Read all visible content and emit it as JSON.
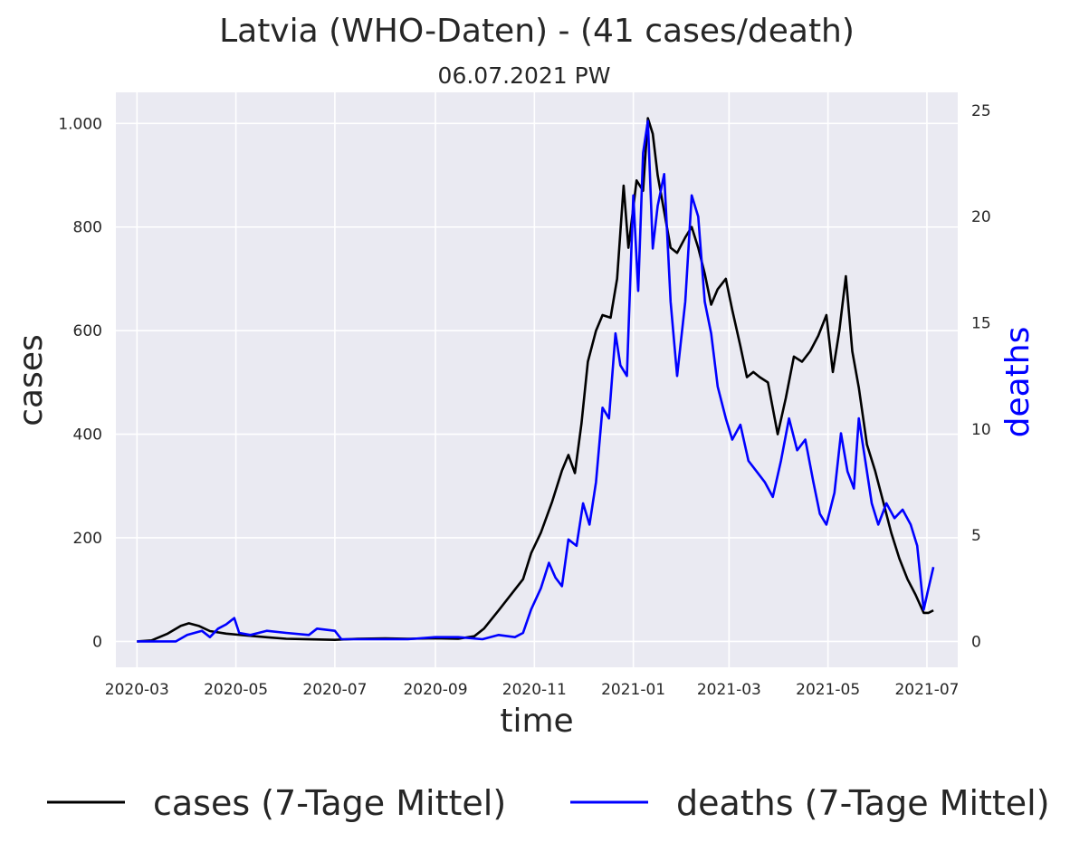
{
  "chart_data": {
    "type": "line",
    "title": "Latvia (WHO-Daten) - (41 cases/death)",
    "subtitle": "06.07.2021 PW",
    "xlabel": "time",
    "ylabel_left": "cases",
    "ylabel_right": "deaths",
    "x_ticks": [
      "2020-03",
      "2020-05",
      "2020-07",
      "2020-09",
      "2020-11",
      "2021-01",
      "2021-03",
      "2021-05",
      "2021-07"
    ],
    "y_left_ticks": [
      {
        "value": 0,
        "label": "0"
      },
      {
        "value": 200,
        "label": "200"
      },
      {
        "value": 400,
        "label": "400"
      },
      {
        "value": 600,
        "label": "600"
      },
      {
        "value": 800,
        "label": "800"
      },
      {
        "value": 1000,
        "label": "1.000"
      }
    ],
    "y_right_ticks": [
      {
        "value": 0,
        "label": "0"
      },
      {
        "value": 5,
        "label": "5"
      },
      {
        "value": 10,
        "label": "10"
      },
      {
        "value": 15,
        "label": "15"
      },
      {
        "value": 20,
        "label": "20"
      },
      {
        "value": 25,
        "label": "25"
      }
    ],
    "xlim": [
      "2020-02-17",
      "2021-07-20"
    ],
    "ylim_left": [
      -50,
      1060
    ],
    "ylim_right": [
      -1.22,
      25.85
    ],
    "grid": true,
    "legend_position": "bottom",
    "series": [
      {
        "name": "cases (7-Tage Mittel)",
        "color": "#000000",
        "axis": "left",
        "points": [
          [
            "2020-03-01",
            0
          ],
          [
            "2020-03-10",
            2
          ],
          [
            "2020-03-20",
            15
          ],
          [
            "2020-03-28",
            30
          ],
          [
            "2020-04-02",
            35
          ],
          [
            "2020-04-08",
            30
          ],
          [
            "2020-04-15",
            20
          ],
          [
            "2020-04-25",
            15
          ],
          [
            "2020-05-05",
            12
          ],
          [
            "2020-05-20",
            8
          ],
          [
            "2020-06-01",
            5
          ],
          [
            "2020-06-15",
            4
          ],
          [
            "2020-07-01",
            3
          ],
          [
            "2020-07-15",
            5
          ],
          [
            "2020-08-01",
            6
          ],
          [
            "2020-08-15",
            5
          ],
          [
            "2020-09-01",
            6
          ],
          [
            "2020-09-15",
            5
          ],
          [
            "2020-09-25",
            10
          ],
          [
            "2020-10-01",
            25
          ],
          [
            "2020-10-10",
            60
          ],
          [
            "2020-10-20",
            100
          ],
          [
            "2020-10-25",
            120
          ],
          [
            "2020-10-30",
            170
          ],
          [
            "2020-11-05",
            210
          ],
          [
            "2020-11-12",
            270
          ],
          [
            "2020-11-18",
            330
          ],
          [
            "2020-11-22",
            360
          ],
          [
            "2020-11-26",
            325
          ],
          [
            "2020-11-30",
            420
          ],
          [
            "2020-12-04",
            540
          ],
          [
            "2020-12-09",
            600
          ],
          [
            "2020-12-13",
            630
          ],
          [
            "2020-12-18",
            625
          ],
          [
            "2020-12-22",
            700
          ],
          [
            "2020-12-26",
            880
          ],
          [
            "2020-12-29",
            760
          ],
          [
            "2021-01-03",
            890
          ],
          [
            "2021-01-07",
            870
          ],
          [
            "2021-01-10",
            1010
          ],
          [
            "2021-01-13",
            980
          ],
          [
            "2021-01-16",
            900
          ],
          [
            "2021-01-20",
            830
          ],
          [
            "2021-01-24",
            760
          ],
          [
            "2021-01-28",
            750
          ],
          [
            "2021-02-02",
            780
          ],
          [
            "2021-02-06",
            800
          ],
          [
            "2021-02-10",
            760
          ],
          [
            "2021-02-14",
            710
          ],
          [
            "2021-02-18",
            650
          ],
          [
            "2021-02-22",
            680
          ],
          [
            "2021-02-27",
            700
          ],
          [
            "2021-03-03",
            640
          ],
          [
            "2021-03-08",
            570
          ],
          [
            "2021-03-12",
            510
          ],
          [
            "2021-03-16",
            520
          ],
          [
            "2021-03-20",
            510
          ],
          [
            "2021-03-25",
            500
          ],
          [
            "2021-03-31",
            400
          ],
          [
            "2021-04-05",
            470
          ],
          [
            "2021-04-10",
            550
          ],
          [
            "2021-04-15",
            540
          ],
          [
            "2021-04-20",
            560
          ],
          [
            "2021-04-25",
            590
          ],
          [
            "2021-04-30",
            630
          ],
          [
            "2021-05-04",
            520
          ],
          [
            "2021-05-08",
            600
          ],
          [
            "2021-05-12",
            705
          ],
          [
            "2021-05-16",
            560
          ],
          [
            "2021-05-20",
            490
          ],
          [
            "2021-05-25",
            380
          ],
          [
            "2021-05-30",
            330
          ],
          [
            "2021-06-04",
            270
          ],
          [
            "2021-06-09",
            210
          ],
          [
            "2021-06-14",
            160
          ],
          [
            "2021-06-19",
            120
          ],
          [
            "2021-06-24",
            90
          ],
          [
            "2021-06-29",
            55
          ],
          [
            "2021-07-02",
            55
          ],
          [
            "2021-07-05",
            60
          ]
        ]
      },
      {
        "name": "deaths (7-Tage Mittel)",
        "color": "#0000ff",
        "axis": "right",
        "points": [
          [
            "2020-03-01",
            0
          ],
          [
            "2020-03-25",
            0
          ],
          [
            "2020-04-01",
            0.3
          ],
          [
            "2020-04-10",
            0.5
          ],
          [
            "2020-04-15",
            0.2
          ],
          [
            "2020-04-20",
            0.6
          ],
          [
            "2020-04-25",
            0.8
          ],
          [
            "2020-04-30",
            1.1
          ],
          [
            "2020-05-03",
            0.4
          ],
          [
            "2020-05-10",
            0.3
          ],
          [
            "2020-05-20",
            0.5
          ],
          [
            "2020-06-01",
            0.4
          ],
          [
            "2020-06-15",
            0.3
          ],
          [
            "2020-06-20",
            0.6
          ],
          [
            "2020-07-01",
            0.5
          ],
          [
            "2020-07-05",
            0.1
          ],
          [
            "2020-07-15",
            0.1
          ],
          [
            "2020-08-01",
            0.1
          ],
          [
            "2020-08-15",
            0.1
          ],
          [
            "2020-09-01",
            0.2
          ],
          [
            "2020-09-15",
            0.2
          ],
          [
            "2020-09-30",
            0.1
          ],
          [
            "2020-10-10",
            0.3
          ],
          [
            "2020-10-20",
            0.2
          ],
          [
            "2020-10-25",
            0.4
          ],
          [
            "2020-10-30",
            1.5
          ],
          [
            "2020-11-05",
            2.5
          ],
          [
            "2020-11-10",
            3.7
          ],
          [
            "2020-11-14",
            3.0
          ],
          [
            "2020-11-18",
            2.6
          ],
          [
            "2020-11-22",
            4.8
          ],
          [
            "2020-11-27",
            4.5
          ],
          [
            "2020-12-01",
            6.5
          ],
          [
            "2020-12-05",
            5.5
          ],
          [
            "2020-12-09",
            7.5
          ],
          [
            "2020-12-13",
            11.0
          ],
          [
            "2020-12-17",
            10.5
          ],
          [
            "2020-12-21",
            14.5
          ],
          [
            "2020-12-24",
            13.0
          ],
          [
            "2020-12-28",
            12.5
          ],
          [
            "2021-01-01",
            21.0
          ],
          [
            "2021-01-04",
            16.5
          ],
          [
            "2021-01-07",
            23.0
          ],
          [
            "2021-01-10",
            24.5
          ],
          [
            "2021-01-13",
            18.5
          ],
          [
            "2021-01-16",
            20.5
          ],
          [
            "2021-01-20",
            22.0
          ],
          [
            "2021-01-24",
            16.0
          ],
          [
            "2021-01-28",
            12.5
          ],
          [
            "2021-02-02",
            16.0
          ],
          [
            "2021-02-06",
            21.0
          ],
          [
            "2021-02-10",
            20.0
          ],
          [
            "2021-02-14",
            16.0
          ],
          [
            "2021-02-18",
            14.5
          ],
          [
            "2021-02-22",
            12.0
          ],
          [
            "2021-02-27",
            10.5
          ],
          [
            "2021-03-03",
            9.5
          ],
          [
            "2021-03-08",
            10.2
          ],
          [
            "2021-03-13",
            8.5
          ],
          [
            "2021-03-18",
            8.0
          ],
          [
            "2021-03-23",
            7.5
          ],
          [
            "2021-03-28",
            6.8
          ],
          [
            "2021-04-02",
            8.5
          ],
          [
            "2021-04-07",
            10.5
          ],
          [
            "2021-04-12",
            9.0
          ],
          [
            "2021-04-17",
            9.5
          ],
          [
            "2021-04-22",
            7.5
          ],
          [
            "2021-04-26",
            6.0
          ],
          [
            "2021-04-30",
            5.5
          ],
          [
            "2021-05-05",
            7.0
          ],
          [
            "2021-05-09",
            9.8
          ],
          [
            "2021-05-13",
            8.0
          ],
          [
            "2021-05-17",
            7.2
          ],
          [
            "2021-05-20",
            10.5
          ],
          [
            "2021-05-24",
            8.5
          ],
          [
            "2021-05-28",
            6.5
          ],
          [
            "2021-06-01",
            5.5
          ],
          [
            "2021-06-06",
            6.5
          ],
          [
            "2021-06-11",
            5.8
          ],
          [
            "2021-06-16",
            6.2
          ],
          [
            "2021-06-21",
            5.5
          ],
          [
            "2021-06-25",
            4.5
          ],
          [
            "2021-06-29",
            1.5
          ],
          [
            "2021-07-02",
            2.5
          ],
          [
            "2021-07-05",
            3.5
          ]
        ]
      }
    ]
  }
}
